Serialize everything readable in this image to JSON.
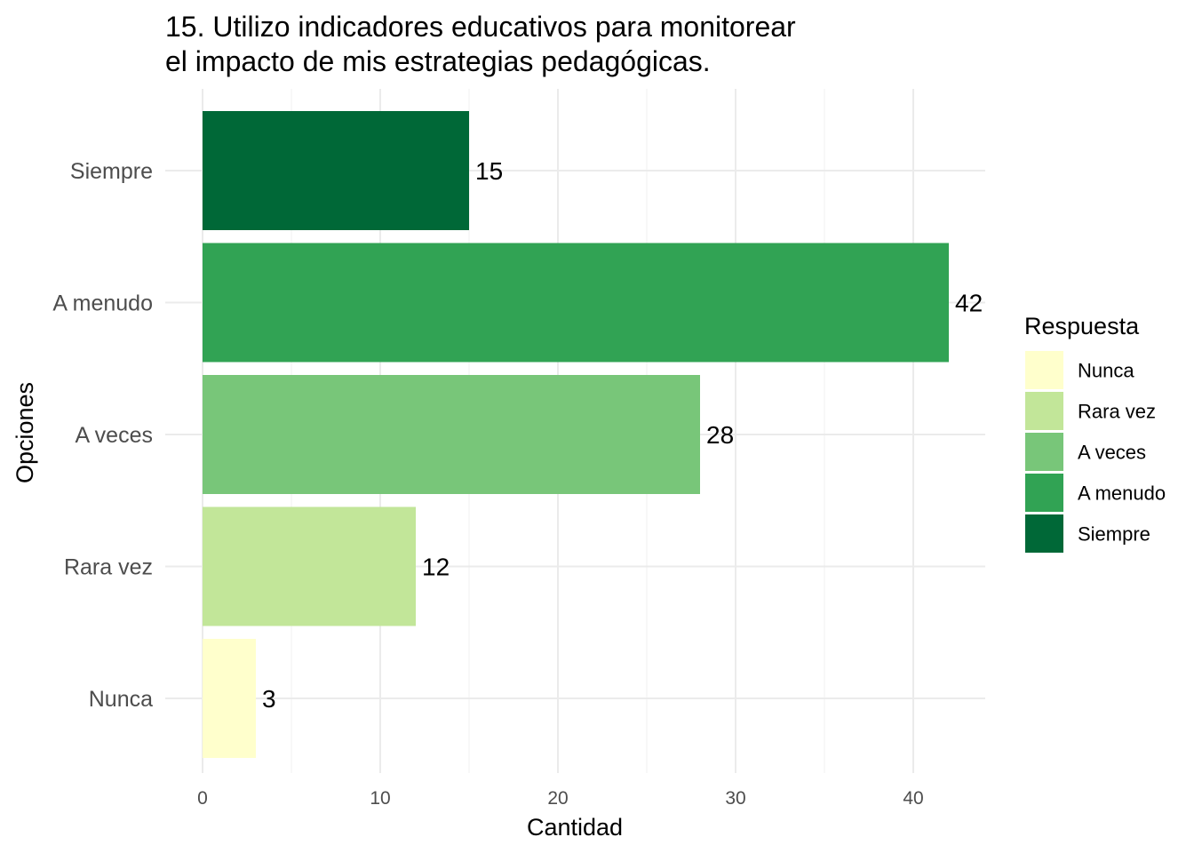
{
  "chart_data": {
    "type": "bar",
    "orientation": "horizontal",
    "title": "15. Utilizo indicadores educativos para monitorear el impacto de mis estrategias pedagógicas.",
    "title_lines": [
      "15. Utilizo indicadores educativos para monitorear",
      "el impacto de mis estrategias pedagógicas."
    ],
    "xlabel": "Cantidad",
    "ylabel": "Opciones",
    "categories": [
      "Nunca",
      "Rara vez",
      "A veces",
      "A menudo",
      "Siempre"
    ],
    "values": [
      3,
      12,
      28,
      42,
      15
    ],
    "colors": [
      "#ffffcc",
      "#c2e699",
      "#78c679",
      "#31a354",
      "#006837"
    ],
    "xlim": [
      0,
      44
    ],
    "x_ticks": [
      0,
      10,
      20,
      30,
      40
    ],
    "grid": true,
    "legend": {
      "title": "Respuesta",
      "placement": "right",
      "entries": [
        "Nunca",
        "Rara vez",
        "A veces",
        "A menudo",
        "Siempre"
      ]
    }
  }
}
